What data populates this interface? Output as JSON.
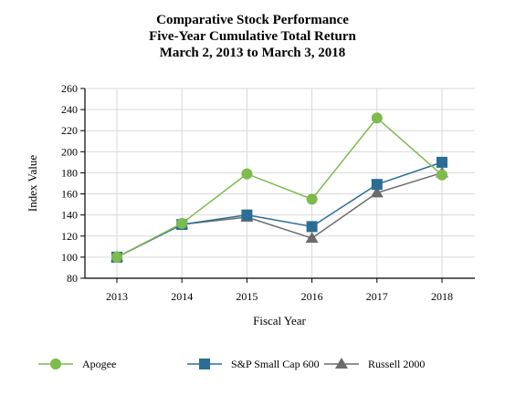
{
  "chart_data": {
    "type": "line",
    "title": "Comparative Stock Performance",
    "subtitle_lines": [
      "Five-Year Cumulative Total Return",
      "March 2, 2013 to March 3, 2018"
    ],
    "xlabel": "Fiscal Year",
    "ylabel": "Index Value",
    "categories": [
      "2013",
      "2014",
      "2015",
      "2016",
      "2017",
      "2018"
    ],
    "ylim": [
      80,
      260
    ],
    "yticks": [
      80,
      100,
      120,
      140,
      160,
      180,
      200,
      220,
      240,
      260
    ],
    "grid": true,
    "legend_position": "bottom",
    "series": [
      {
        "name": "Apogee",
        "marker": "circle",
        "color": "#7dbb4c",
        "values": [
          100,
          132,
          179,
          155,
          232,
          178
        ]
      },
      {
        "name": "S&P Small Cap 600",
        "marker": "square",
        "color": "#2b6e95",
        "values": [
          100,
          131,
          140,
          129,
          169,
          190
        ]
      },
      {
        "name": "Russell 2000",
        "marker": "triangle",
        "color": "#6b6b6b",
        "values": [
          100,
          131,
          138,
          118,
          161,
          180
        ]
      }
    ]
  }
}
